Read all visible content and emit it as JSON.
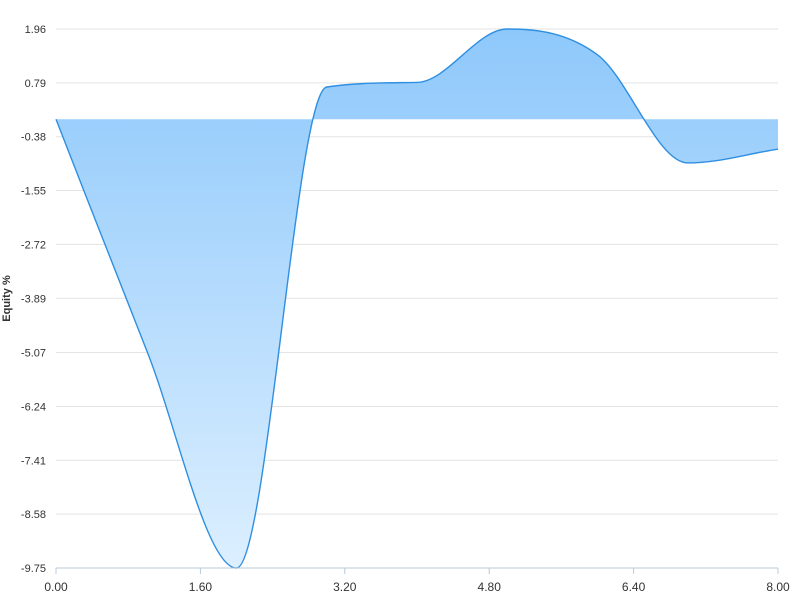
{
  "chart_data": {
    "type": "area",
    "title": "",
    "xlabel": "",
    "ylabel": "Equity %",
    "xlim": [
      0,
      8
    ],
    "ylim": [
      -9.75,
      1.96
    ],
    "grid": true,
    "x_ticks": [
      "0.00",
      "1.60",
      "3.20",
      "4.80",
      "6.40",
      "8.00"
    ],
    "y_ticks": [
      "1.96",
      "0.79",
      "-0.38",
      "-1.55",
      "-2.72",
      "-3.89",
      "-5.07",
      "-6.24",
      "-7.41",
      "-8.58",
      "-9.75"
    ],
    "series": [
      {
        "x": [
          0,
          1,
          2,
          3,
          4,
          5,
          6,
          7,
          8
        ],
        "y": [
          0,
          -5,
          -9.75,
          0.7,
          0.8,
          1.96,
          1.4,
          -0.95,
          -0.65
        ]
      }
    ],
    "colors": {
      "line": "#2f8fe0",
      "fill_top": "#8ec8fb",
      "fill_bottom": "#dcefff",
      "grid": "#e3e3e3",
      "axis": "#b8c8d8"
    }
  }
}
